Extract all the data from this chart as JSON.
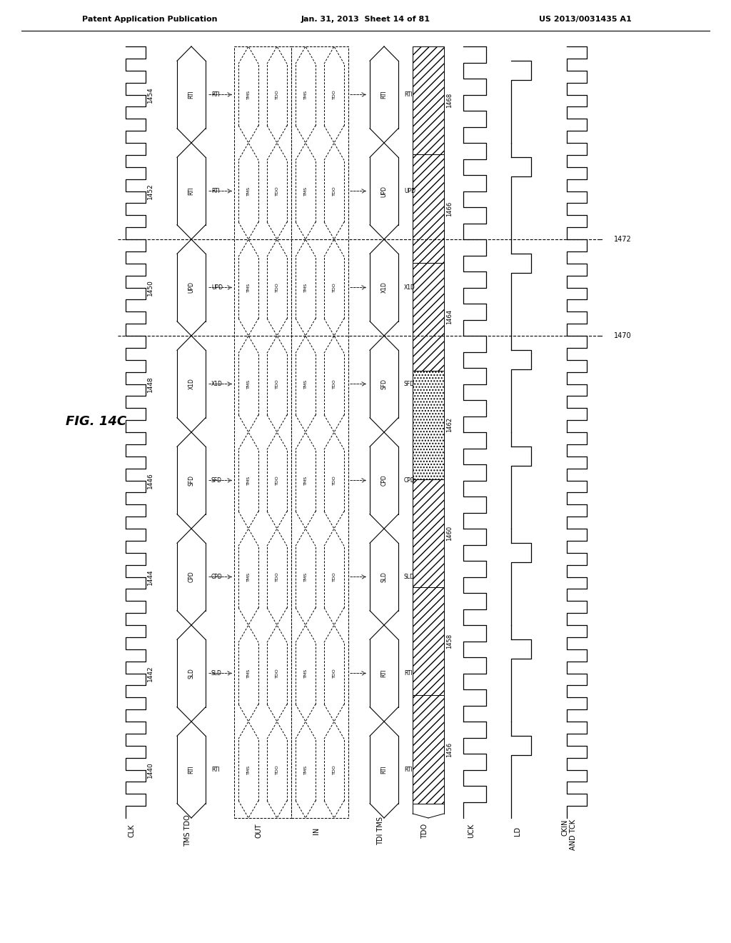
{
  "title": "FIG. 14C",
  "header_left": "Patent Application Publication",
  "header_center": "Jan. 31, 2013  Sheet 14 of 81",
  "header_right": "US 2013/0031435 A1",
  "signal_names": [
    "CLK",
    "TMS TDO",
    "OUT",
    "IN",
    "TDI TMS",
    "TDO",
    "UCK",
    "LD",
    "CKIN\nAND TCK"
  ],
  "seg_labels": [
    "1440",
    "1442",
    "1444",
    "1446",
    "1448",
    "1450",
    "1452",
    "1454"
  ],
  "tms_tdo_states": [
    "RTI",
    "SLD",
    "CPD",
    "SFD",
    "X1D",
    "UPD",
    "RTI",
    "RTI"
  ],
  "tdi_tms_states": [
    "RTI",
    "RTI",
    "SLD",
    "CPD",
    "SFD",
    "X1D",
    "UPD",
    "RTI"
  ],
  "tdo_seg_labels": [
    "1456",
    "1458",
    "1460",
    "1462",
    "1464",
    "1466",
    "1468"
  ],
  "tdo_hatch": [
    "///",
    "///",
    "///",
    "///",
    "///",
    "///",
    "///"
  ],
  "tdo_dotted_idx": 3,
  "ref_labels": [
    "1470",
    "1472"
  ],
  "background_color": "#ffffff"
}
